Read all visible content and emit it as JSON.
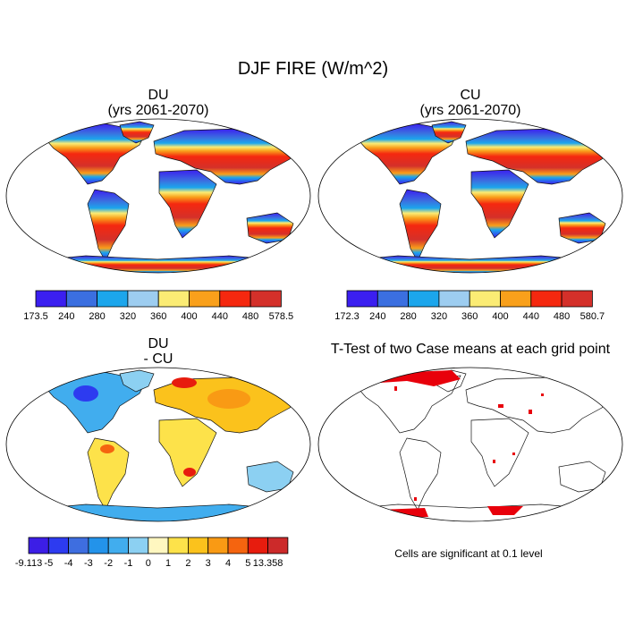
{
  "title": "DJF FIRE (W/m^2)",
  "panels": {
    "du": {
      "title": "DU",
      "subtitle": "(yrs 2061-2070)"
    },
    "cu": {
      "title": "CU",
      "subtitle": "(yrs 2061-2070)"
    },
    "diff": {
      "title": "DU",
      "subtitle": "- CU"
    },
    "ttest": {
      "title": "T-Test of two Case means at each grid point",
      "note": "Cells are significant at 0.1 level"
    }
  },
  "colorbars": {
    "du": {
      "colors": [
        "#3b1ff0",
        "#3b6fe0",
        "#1ca6ec",
        "#9dcdf0",
        "#fbec74",
        "#f9a01b",
        "#f5280f",
        "#d4302a"
      ],
      "labels": [
        "173.5",
        "240",
        "280",
        "320",
        "360",
        "400",
        "440",
        "480",
        "578.5"
      ]
    },
    "cu": {
      "colors": [
        "#3b1ff0",
        "#3b6fe0",
        "#1ca6ec",
        "#9dcdf0",
        "#fbec74",
        "#f9a01b",
        "#f5280f",
        "#d4302a"
      ],
      "labels": [
        "172.3",
        "240",
        "280",
        "320",
        "360",
        "400",
        "440",
        "480",
        "580.7"
      ]
    },
    "diff": {
      "colors": [
        "#3c1ee6",
        "#2d3bf0",
        "#3e6ee0",
        "#2393ea",
        "#41adee",
        "#8cd0f2",
        "#fff7c0",
        "#fde24a",
        "#fbc21c",
        "#f99a14",
        "#f5640f",
        "#e71c0e",
        "#cc2a2a"
      ],
      "labels": [
        "-9.113",
        "-5",
        "-4",
        "-3",
        "-2",
        "-1",
        "0",
        "1",
        "2",
        "3",
        "4",
        "5",
        "13.358"
      ]
    }
  }
}
